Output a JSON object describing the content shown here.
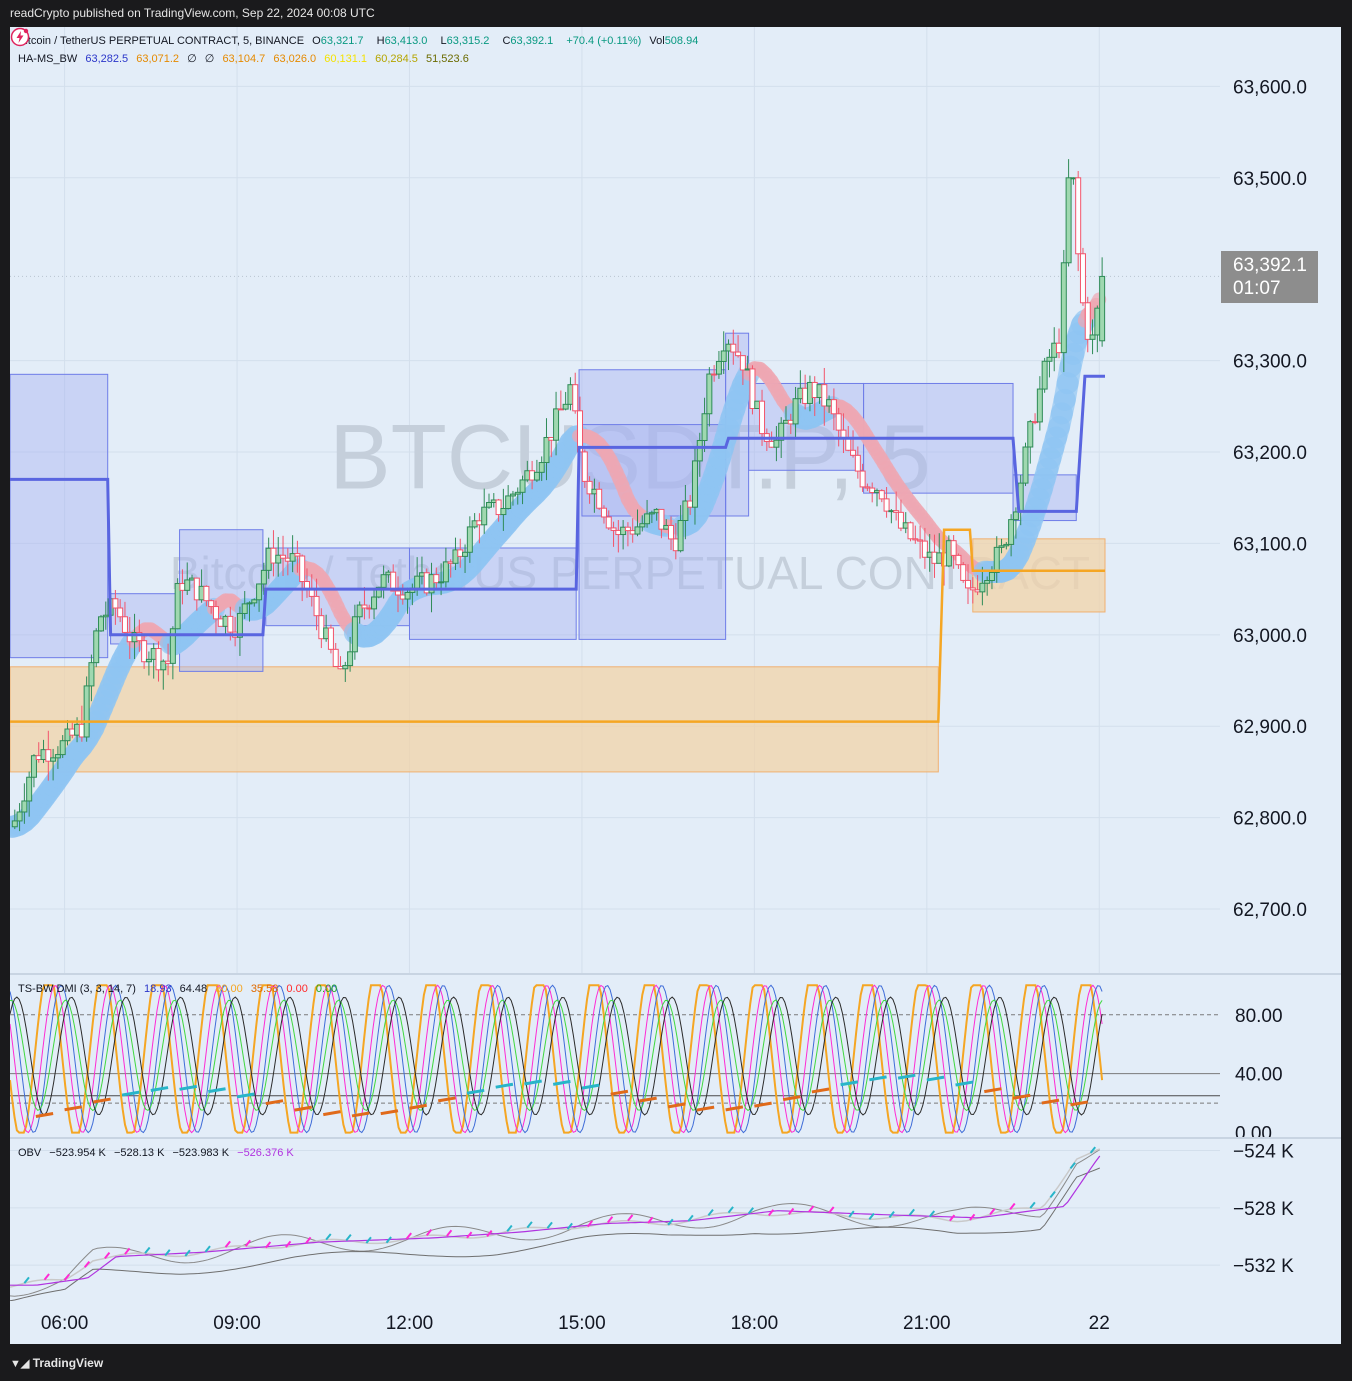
{
  "header": {
    "publish_text": "readCrypto published on TradingView.com, Sep 22, 2024 00:08 UTC"
  },
  "footer": {
    "brand": "TradingView"
  },
  "symbol_legend": {
    "title": "Bitcoin / TetherUS PERPETUAL CONTRACT, 5, BINANCE",
    "o_label": "O",
    "o": "63,321.7",
    "h_label": "H",
    "h": "63,413.0",
    "l_label": "L",
    "l": "63,315.2",
    "c_label": "C",
    "c": "63,392.1",
    "change": "+70.4 (+0.11%)",
    "vol_label": "Vol",
    "vol": "508.94"
  },
  "ha_ms_legend": {
    "name": "HA-MS_BW",
    "v1": "63,282.5",
    "v2": "63,071.2",
    "v3": "∅",
    "v4": "∅",
    "v5": "63,104.7",
    "v6": "63,026.0",
    "v7": "60,131.1",
    "v8": "60,284.5",
    "v9": "51,523.6"
  },
  "watermark": {
    "symbol": "BTCUSDT.P, 5",
    "description": "Bitcoin / TetherUS PERPETUAL CONTRACT"
  },
  "price_tag": {
    "price": "63,392.1",
    "countdown": "01:07"
  },
  "price_axis": {
    "labels": [
      {
        "price": 63600,
        "text": "63,600.0"
      },
      {
        "price": 63500,
        "text": "63,500.0"
      },
      {
        "price": 63300,
        "text": "63,300.0"
      },
      {
        "price": 63200,
        "text": "63,200.0"
      },
      {
        "price": 63100,
        "text": "63,100.0"
      },
      {
        "price": 63000,
        "text": "63,000.0"
      },
      {
        "price": 62900,
        "text": "62,900.0"
      },
      {
        "price": 62800,
        "text": "62,800.0"
      },
      {
        "price": 62700,
        "text": "62,700.0"
      }
    ]
  },
  "dmi_legend": {
    "name": "TS-BW DMI (3, 3, 14, 7)",
    "v1": "18.93",
    "v2": "64.48",
    "v3": "80.00",
    "v4": "35.58",
    "v5": "0.00",
    "v6": "0.00"
  },
  "dmi_axis": {
    "labels": [
      {
        "value": 80,
        "text": "80.00"
      },
      {
        "value": 40,
        "text": "40.00"
      },
      {
        "value": 0,
        "text": "0.00"
      }
    ]
  },
  "obv_legend": {
    "name": "OBV",
    "v1": "−523.954 K",
    "v2": "−528.13 K",
    "v3": "−523.983 K",
    "v4": "−526.376 K"
  },
  "obv_axis": {
    "labels": [
      {
        "value": -524,
        "text": "−524 K"
      },
      {
        "value": -528,
        "text": "−528 K"
      },
      {
        "value": -532,
        "text": "−532 K"
      }
    ]
  },
  "time_axis": {
    "labels": [
      {
        "hour": 6,
        "text": "06:00"
      },
      {
        "hour": 9,
        "text": "09:00"
      },
      {
        "hour": 12,
        "text": "12:00"
      },
      {
        "hour": 15,
        "text": "15:00"
      },
      {
        "hour": 18,
        "text": "18:00"
      },
      {
        "hour": 21,
        "text": "21:00"
      },
      {
        "hour": 24,
        "text": "22"
      }
    ]
  },
  "colors": {
    "background": "#e3edf8",
    "grid": "#d3dfec",
    "up": "#9fd8b0",
    "down": "#f2546b",
    "ha_ms_line": "#5965e0",
    "support_line": "#f5a623",
    "box_blue": "#a9b4f2",
    "box_orange": "#f2d3a8",
    "ribbon_up": "#8ec5f2",
    "ribbon_down": "#eea7b2",
    "dmi_orange": "#f5a623",
    "dmi_pink": "#ff2ad4",
    "dmi_blue": "#3f6cd8",
    "dmi_green": "#3fd83f",
    "dmi_black": "#2b2b2b",
    "obv_purple": "#b034e0"
  },
  "chart_data": [
    {
      "type": "candlestick",
      "title": "Bitcoin / TetherUS PERPETUAL CONTRACT, 5, BINANCE",
      "ylim": [
        62630,
        63665
      ],
      "x_range_hours": [
        5.05,
        24.1
      ],
      "last": {
        "open": 63321.7,
        "high": 63413.0,
        "low": 63315.2,
        "close": 63392.1
      },
      "close_anchors": [
        [
          5.1,
          62790
        ],
        [
          5.5,
          62870
        ],
        [
          6.0,
          62880
        ],
        [
          6.3,
          62900
        ],
        [
          6.6,
          63020
        ],
        [
          6.9,
          63030
        ],
        [
          7.2,
          62990
        ],
        [
          7.5,
          62980
        ],
        [
          7.8,
          62970
        ],
        [
          8.0,
          63060
        ],
        [
          8.3,
          63050
        ],
        [
          8.7,
          63020
        ],
        [
          9.0,
          63010
        ],
        [
          9.3,
          63050
        ],
        [
          9.6,
          63090
        ],
        [
          10.0,
          63080
        ],
        [
          10.4,
          63020
        ],
        [
          10.8,
          62950
        ],
        [
          11.1,
          63020
        ],
        [
          11.5,
          63060
        ],
        [
          12.0,
          63050
        ],
        [
          12.4,
          63060
        ],
        [
          12.8,
          63080
        ],
        [
          13.2,
          63130
        ],
        [
          13.6,
          63140
        ],
        [
          14.0,
          63170
        ],
        [
          14.3,
          63200
        ],
        [
          14.6,
          63240
        ],
        [
          14.8,
          63270
        ],
        [
          15.0,
          63180
        ],
        [
          15.3,
          63150
        ],
        [
          15.6,
          63110
        ],
        [
          16.0,
          63120
        ],
        [
          16.3,
          63130
        ],
        [
          16.6,
          63100
        ],
        [
          16.9,
          63150
        ],
        [
          17.2,
          63280
        ],
        [
          17.5,
          63330
        ],
        [
          17.8,
          63300
        ],
        [
          18.1,
          63230
        ],
        [
          18.4,
          63210
        ],
        [
          18.7,
          63250
        ],
        [
          19.0,
          63270
        ],
        [
          19.3,
          63250
        ],
        [
          19.6,
          63200
        ],
        [
          19.9,
          63170
        ],
        [
          20.2,
          63160
        ],
        [
          20.5,
          63120
        ],
        [
          20.8,
          63100
        ],
        [
          21.1,
          63080
        ],
        [
          21.4,
          63090
        ],
        [
          21.7,
          63040
        ],
        [
          22.0,
          63070
        ],
        [
          22.3,
          63090
        ],
        [
          22.6,
          63160
        ],
        [
          22.9,
          63250
        ],
        [
          23.1,
          63300
        ],
        [
          23.3,
          63320
        ],
        [
          23.5,
          63500
        ],
        [
          23.75,
          63340
        ],
        [
          23.9,
          63320
        ],
        [
          24.05,
          63392
        ]
      ],
      "ha_ms_line": [
        [
          5.05,
          63170
        ],
        [
          6.75,
          63170
        ],
        [
          6.8,
          63000
        ],
        [
          9.45,
          63000
        ],
        [
          9.5,
          63050
        ],
        [
          14.9,
          63050
        ],
        [
          14.95,
          63205
        ],
        [
          17.5,
          63205
        ],
        [
          17.55,
          63215
        ],
        [
          22.5,
          63215
        ],
        [
          22.6,
          63135
        ],
        [
          23.6,
          63135
        ],
        [
          23.75,
          63283
        ],
        [
          24.1,
          63283
        ]
      ],
      "support_line": [
        [
          5.05,
          62905
        ],
        [
          21.2,
          62905
        ],
        [
          21.3,
          63115
        ],
        [
          21.75,
          63115
        ],
        [
          21.8,
          63070
        ],
        [
          24.1,
          63070
        ]
      ],
      "boxes_blue": [
        [
          5.05,
          6.75,
          62975,
          63285
        ],
        [
          6.8,
          8.0,
          62990,
          63045
        ],
        [
          8.0,
          9.45,
          62960,
          63115
        ],
        [
          9.5,
          12.0,
          63010,
          63095
        ],
        [
          12.0,
          14.9,
          62995,
          63095
        ],
        [
          14.95,
          17.5,
          62995,
          63290
        ],
        [
          15.0,
          17.5,
          63130,
          63230
        ],
        [
          17.5,
          17.9,
          63130,
          63330
        ],
        [
          17.9,
          19.9,
          63180,
          63275
        ],
        [
          19.9,
          22.5,
          63155,
          63275
        ],
        [
          22.5,
          23.6,
          63125,
          63175
        ]
      ],
      "boxes_orange": [
        [
          5.05,
          21.2,
          62850,
          62965
        ],
        [
          21.8,
          24.1,
          63025,
          63105
        ]
      ]
    },
    {
      "type": "line",
      "title": "TS-BW DMI (3, 3, 14, 7)",
      "ylim": [
        -3,
        107
      ],
      "levels": [
        80,
        40,
        20
      ]
    },
    {
      "type": "line",
      "title": "OBV",
      "unit": "K",
      "ylim": [
        -534.5,
        -523.2
      ]
    }
  ]
}
